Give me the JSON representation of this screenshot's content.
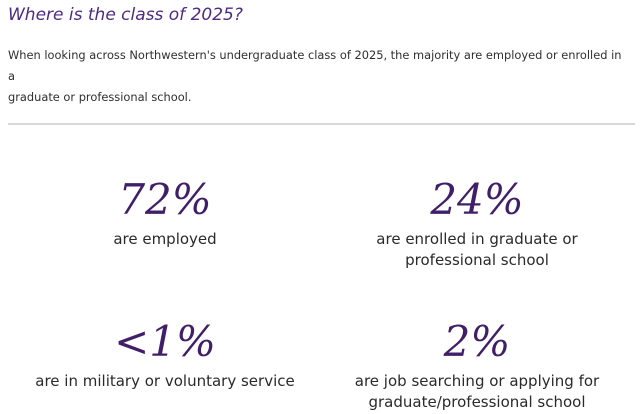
{
  "heading": "Where is the class of 2025?",
  "intro": {
    "line1": "When looking across Northwestern's undergraduate class of 2025, the majority are employed or enrolled in a",
    "line2": "graduate or professional school."
  },
  "stats": [
    {
      "value": "72%",
      "label_lines": [
        "are employed"
      ]
    },
    {
      "value": "24%",
      "label_lines": [
        "are enrolled in graduate or",
        "professional school"
      ]
    },
    {
      "value": "<1%",
      "label_lines": [
        "are in military or voluntary service"
      ]
    },
    {
      "value": "2%",
      "label_lines": [
        "are job searching or applying for",
        "graduate/professional school"
      ]
    }
  ],
  "colors": {
    "accent_purple": "#4e2a84",
    "stat_purple": "#401f68",
    "body_text": "#2a2a2a",
    "divider": "#d8d6de"
  }
}
